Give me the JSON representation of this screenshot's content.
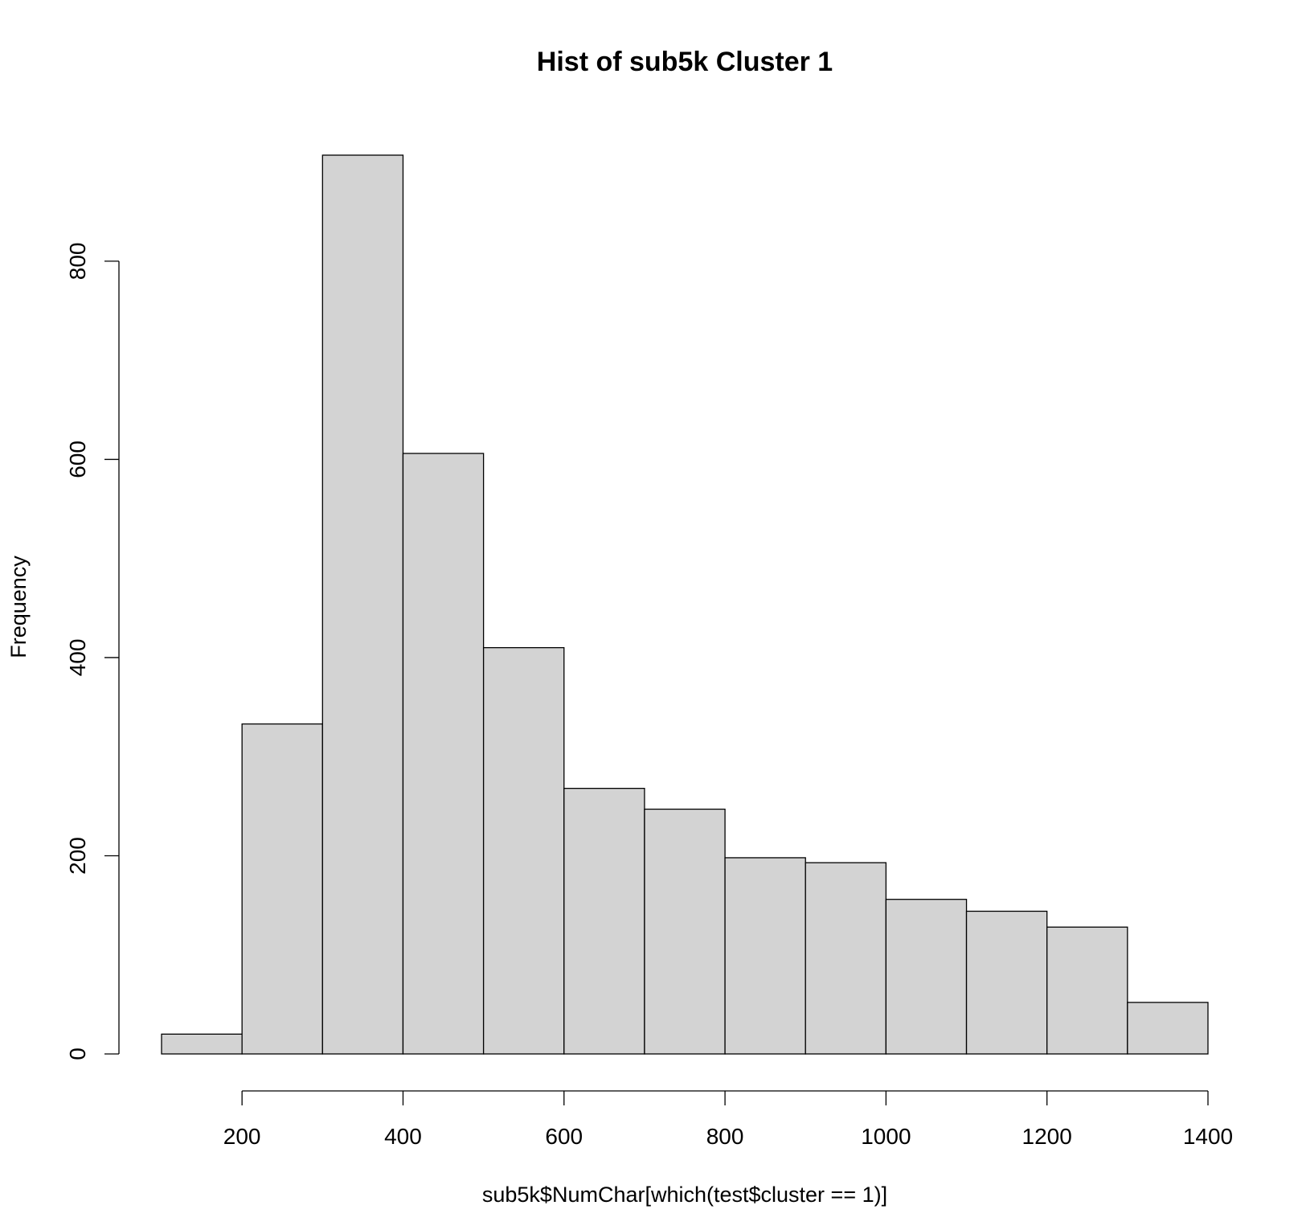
{
  "chart_data": {
    "type": "bar",
    "subtype": "histogram",
    "title": "Hist of sub5k Cluster 1",
    "xlabel": "sub5k$NumChar[which(test$cluster == 1)]",
    "ylabel": "Frequency",
    "bin_edges": [
      100,
      200,
      300,
      400,
      500,
      600,
      700,
      800,
      900,
      1000,
      1100,
      1200,
      1300,
      1400
    ],
    "values": [
      20,
      333,
      907,
      606,
      410,
      268,
      247,
      198,
      193,
      156,
      144,
      128,
      52
    ],
    "xlim": [
      100,
      1400
    ],
    "ylim": [
      0,
      907
    ],
    "x_ticks": [
      200,
      400,
      600,
      800,
      1000,
      1200,
      1400
    ],
    "y_ticks": [
      0,
      200,
      400,
      600,
      800
    ],
    "x_tick_labels": [
      "200",
      "400",
      "600",
      "800",
      "1000",
      "1200",
      "1400"
    ],
    "y_tick_labels": [
      "0",
      "200",
      "400",
      "600",
      "800"
    ],
    "bar_color": "#d3d3d3",
    "grid": false,
    "legend": "none"
  }
}
